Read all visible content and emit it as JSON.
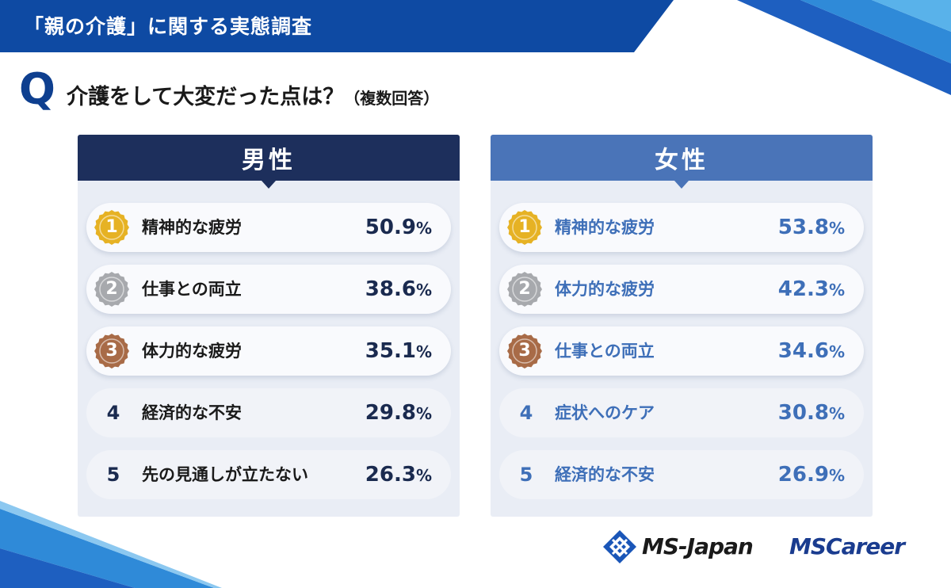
{
  "header": {
    "title": "「親の介護」に関する実態調査"
  },
  "question": {
    "mark": "Q",
    "text": "介護をして大変だった点は？",
    "note": "（複数回答）"
  },
  "colors": {
    "male_head": "#1d2f5c",
    "female_head": "#4a74b8",
    "male_text": "#1a2a4f",
    "female_text": "#3e6fb8",
    "gold": "#e6b224",
    "silver": "#a7a9ad",
    "bronze": "#a86b47"
  },
  "chart_data": [
    {
      "type": "table",
      "title": "男性",
      "rows": [
        {
          "rank": "1",
          "label": "精神的な疲労",
          "value": 50.9,
          "value_text": "50.9",
          "unit": "%",
          "medal": "gold"
        },
        {
          "rank": "2",
          "label": "仕事との両立",
          "value": 38.6,
          "value_text": "38.6",
          "unit": "%",
          "medal": "silver"
        },
        {
          "rank": "3",
          "label": "体力的な疲労",
          "value": 35.1,
          "value_text": "35.1",
          "unit": "%",
          "medal": "bronze"
        },
        {
          "rank": "4",
          "label": "経済的な不安",
          "value": 29.8,
          "value_text": "29.8",
          "unit": "%",
          "medal": "none"
        },
        {
          "rank": "5",
          "label": "先の見通しが立たない",
          "value": 26.3,
          "value_text": "26.3",
          "unit": "%",
          "medal": "none"
        }
      ]
    },
    {
      "type": "table",
      "title": "女性",
      "rows": [
        {
          "rank": "1",
          "label": "精神的な疲労",
          "value": 53.8,
          "value_text": "53.8",
          "unit": "%",
          "medal": "gold"
        },
        {
          "rank": "2",
          "label": "体力的な疲労",
          "value": 42.3,
          "value_text": "42.3",
          "unit": "%",
          "medal": "silver"
        },
        {
          "rank": "3",
          "label": "仕事との両立",
          "value": 34.6,
          "value_text": "34.6",
          "unit": "%",
          "medal": "bronze"
        },
        {
          "rank": "4",
          "label": "症状へのケア",
          "value": 30.8,
          "value_text": "30.8",
          "unit": "%",
          "medal": "none"
        },
        {
          "rank": "5",
          "label": "経済的な不安",
          "value": 26.9,
          "value_text": "26.9",
          "unit": "%",
          "medal": "none"
        }
      ]
    }
  ],
  "logos": {
    "ms_japan": "MS-Japan",
    "ms_career": "MSCareer"
  }
}
